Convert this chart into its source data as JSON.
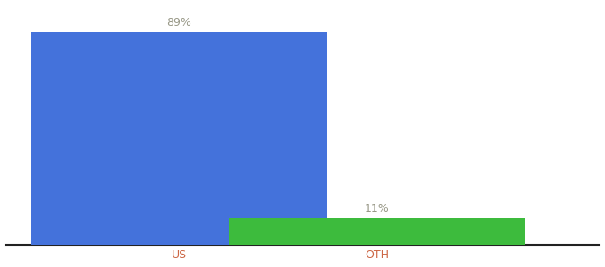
{
  "categories": [
    "US",
    "OTH"
  ],
  "values": [
    89,
    11
  ],
  "bar_colors": [
    "#4472DB",
    "#3DBB3D"
  ],
  "label_texts": [
    "89%",
    "11%"
  ],
  "background_color": "#ffffff",
  "ylim": [
    0,
    100
  ],
  "bar_width": 0.6,
  "label_fontsize": 9,
  "tick_fontsize": 9,
  "label_color": "#999988",
  "tick_color": "#cc6644",
  "x_positions": [
    0.25,
    0.65
  ]
}
